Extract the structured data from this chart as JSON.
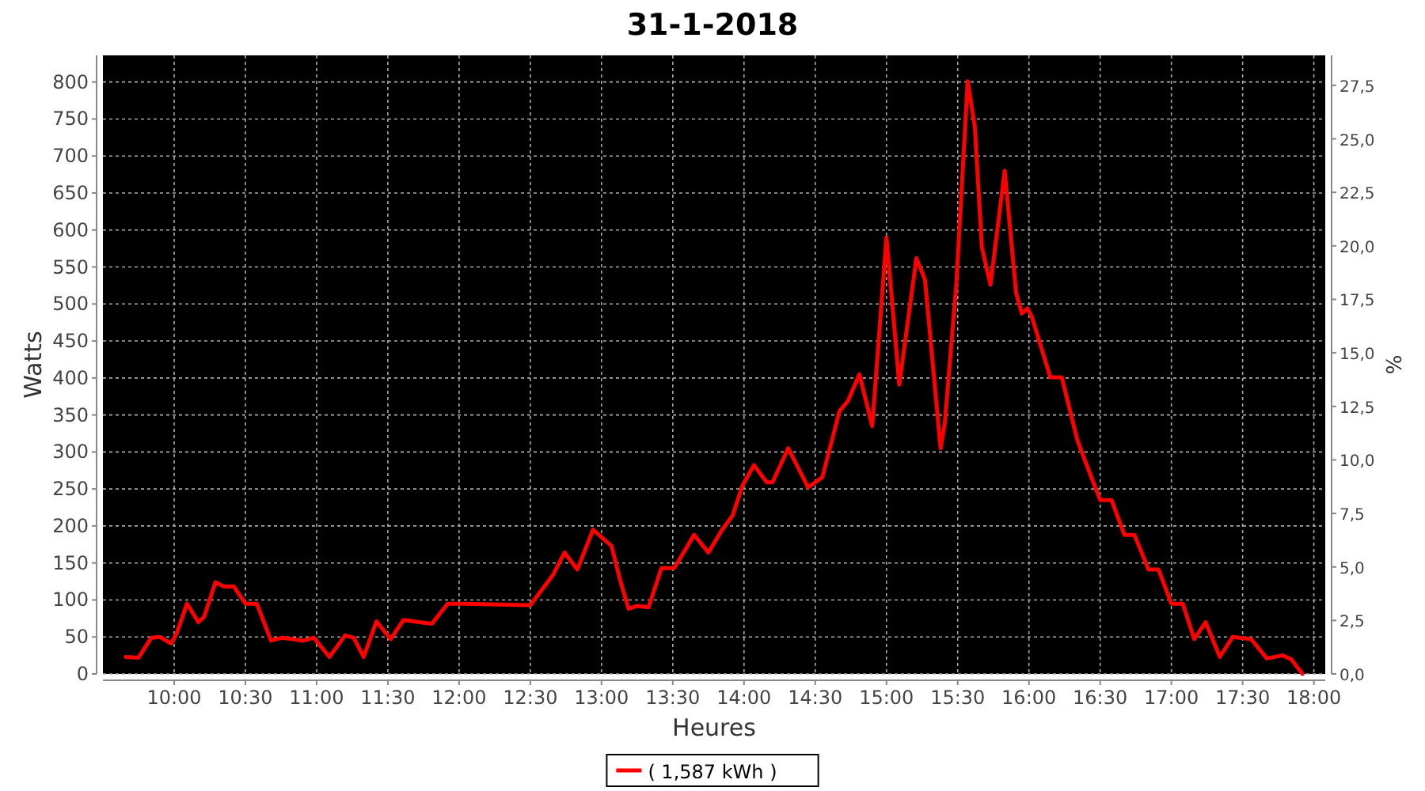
{
  "chart_data": {
    "type": "line",
    "title": "31-1-2018",
    "xlabel": "Heures",
    "ylabel": "Watts",
    "y2label": "%",
    "xlim": [
      9.5,
      18.08
    ],
    "xticks": [
      {
        "value": 10,
        "label": "10:00"
      },
      {
        "value": 10.5,
        "label": "10:30"
      },
      {
        "value": 11,
        "label": "11:00"
      },
      {
        "value": 11.5,
        "label": "11:30"
      },
      {
        "value": 12,
        "label": "12:00"
      },
      {
        "value": 12.5,
        "label": "12:30"
      },
      {
        "value": 13,
        "label": "13:00"
      },
      {
        "value": 13.5,
        "label": "13:30"
      },
      {
        "value": 14,
        "label": "14:00"
      },
      {
        "value": 14.5,
        "label": "14:30"
      },
      {
        "value": 15,
        "label": "15:00"
      },
      {
        "value": 15.5,
        "label": "15:30"
      },
      {
        "value": 16,
        "label": "16:00"
      },
      {
        "value": 16.5,
        "label": "16:30"
      },
      {
        "value": 17,
        "label": "17:00"
      },
      {
        "value": 17.5,
        "label": "17:30"
      },
      {
        "value": 18,
        "label": "18:00"
      }
    ],
    "ylim": [
      0,
      836
    ],
    "yticks": [
      0,
      50,
      100,
      150,
      200,
      250,
      300,
      350,
      400,
      450,
      500,
      550,
      600,
      650,
      700,
      750,
      800
    ],
    "y2lim": [
      0,
      28.9
    ],
    "y2ticks": [
      {
        "value": 0,
        "label": "0,0"
      },
      {
        "value": 2.5,
        "label": "2,5"
      },
      {
        "value": 5,
        "label": "5,0"
      },
      {
        "value": 7.5,
        "label": "7,5"
      },
      {
        "value": 10,
        "label": "10,0"
      },
      {
        "value": 12.5,
        "label": "12,5"
      },
      {
        "value": 15,
        "label": "15,0"
      },
      {
        "value": 17.5,
        "label": "17,5"
      },
      {
        "value": 20,
        "label": "20,0"
      },
      {
        "value": 22.5,
        "label": "22,5"
      },
      {
        "value": 25,
        "label": "25,0"
      },
      {
        "value": 27.5,
        "label": "27,5"
      }
    ],
    "grid": true,
    "legend": "bottom",
    "marker": "none",
    "line_style": "solid",
    "series": [
      {
        "name": "( 1,587 kWh )",
        "color": "#ff0000",
        "x": [
          9.66,
          9.75,
          9.84,
          9.9,
          9.98,
          10.02,
          10.09,
          10.17,
          10.21,
          10.29,
          10.35,
          10.42,
          10.5,
          10.58,
          10.68,
          10.76,
          10.91,
          10.98,
          11.09,
          11.2,
          11.26,
          11.33,
          11.42,
          11.52,
          11.61,
          11.72,
          11.81,
          11.92,
          12.05,
          12.46,
          12.5,
          12.59,
          12.66,
          12.74,
          12.83,
          12.94,
          13.07,
          13.13,
          13.19,
          13.25,
          13.33,
          13.42,
          13.51,
          13.65,
          13.75,
          13.84,
          13.92,
          13.99,
          14.07,
          14.16,
          14.2,
          14.31,
          14.45,
          14.55,
          14.67,
          14.73,
          14.81,
          14.9,
          15.0,
          15.09,
          15.21,
          15.27,
          15.38,
          15.41,
          15.49,
          15.57,
          15.62,
          15.67,
          15.73,
          15.83,
          15.91,
          15.95,
          15.99,
          16.02,
          16.15,
          16.23,
          16.34,
          16.41,
          16.5,
          16.58,
          16.67,
          16.74,
          16.84,
          16.91,
          17.0,
          17.08,
          17.16,
          17.24,
          17.34,
          17.43,
          17.56,
          17.67,
          17.78,
          17.84,
          17.92
        ],
        "values": [
          23,
          22,
          49,
          50,
          41,
          56,
          95,
          70,
          77,
          124,
          118,
          118,
          95,
          95,
          45,
          49,
          45,
          49,
          23,
          52,
          49,
          23,
          71,
          47,
          73,
          70,
          68,
          95,
          95,
          93,
          93,
          116,
          134,
          164,
          141,
          195,
          173,
          127,
          88,
          92,
          90,
          143,
          143,
          188,
          164,
          193,
          214,
          255,
          282,
          259,
          259,
          305,
          252,
          266,
          355,
          369,
          405,
          335,
          590,
          391,
          562,
          533,
          305,
          340,
          526,
          801,
          740,
          576,
          526,
          680,
          515,
          487,
          494,
          483,
          401,
          401,
          316,
          280,
          235,
          235,
          188,
          188,
          141,
          141,
          95,
          95,
          47,
          70,
          23,
          50,
          47,
          21,
          25,
          20,
          0
        ]
      }
    ]
  }
}
